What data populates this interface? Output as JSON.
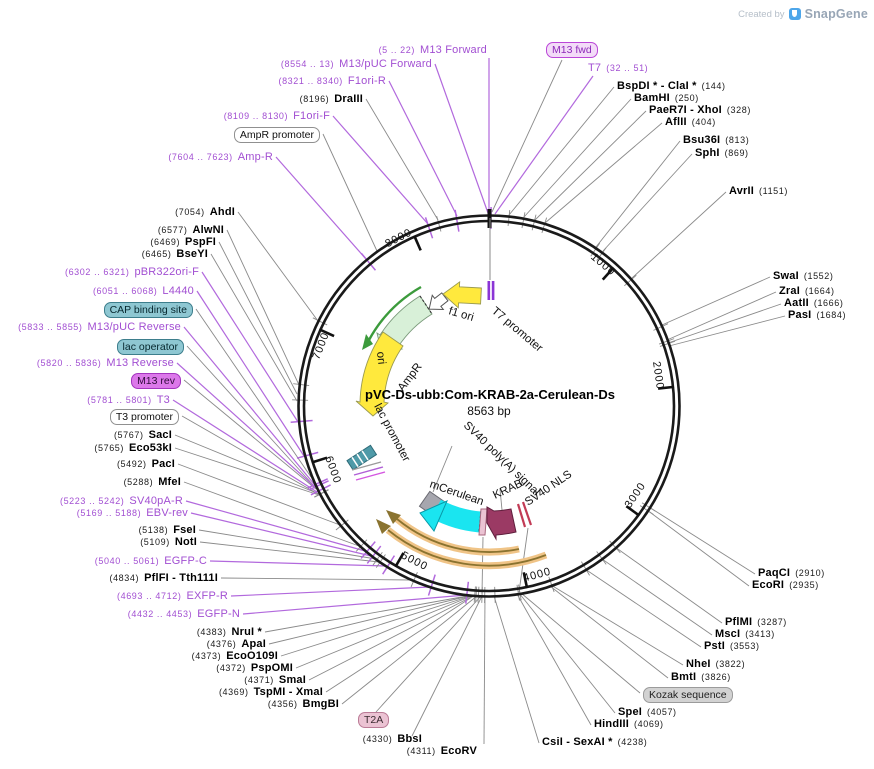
{
  "watermark": {
    "created_by": "Created by",
    "brand": "SnapGene"
  },
  "plasmid": {
    "name": "pVC-Ds-ubb:Com-KRAB-2a-Cerulean-Ds",
    "size": "8563 bp"
  },
  "ticks": [
    "1000",
    "2000",
    "3000",
    "4000",
    "5000",
    "6000",
    "7000",
    "8000"
  ],
  "features": {
    "f1_ori": "f1 ori",
    "t7_promoter": "T7 promoter",
    "ampr": "AmpR",
    "ori": "ori",
    "lac_promoter": "lac promoter",
    "sv40_polya": "SV40 poly(A) signal",
    "mcerulean": "mCerulean",
    "krab": "KRAB",
    "sv40_nls": "SV40 NLS"
  },
  "boxes": {
    "m13_fwd": "M13 fwd",
    "ampr_promoter": "AmpR promoter",
    "cap_binding_site": "CAP binding site",
    "lac_operator": "lac operator",
    "m13_rev": "M13 rev",
    "t3_promoter": "T3 promoter",
    "t2a": "T2A",
    "kozak": "Kozak sequence"
  },
  "primers": {
    "m13_forward": {
      "pos": "(5 .. 22)",
      "name": "M13 Forward"
    },
    "t7": {
      "pos": "(32 .. 51)",
      "name": "T7"
    },
    "m13_puc_forward": {
      "pos": "(8554 .. 13)",
      "name": "M13/pUC Forward"
    },
    "f1ori_r": {
      "pos": "(8321 .. 8340)",
      "name": "F1ori-R"
    },
    "f1ori_f": {
      "pos": "(8109 .. 8130)",
      "name": "F1ori-F"
    },
    "amp_r": {
      "pos": "(7604 .. 7623)",
      "name": "Amp-R"
    },
    "pbr322ori_f": {
      "pos": "(6302 .. 6321)",
      "name": "pBR322ori-F"
    },
    "l4440": {
      "pos": "(6051 .. 6068)",
      "name": "L4440"
    },
    "m13_puc_reverse": {
      "pos": "(5833 .. 5855)",
      "name": "M13/pUC Reverse"
    },
    "m13_reverse": {
      "pos": "(5820 .. 5836)",
      "name": "M13 Reverse"
    },
    "t3": {
      "pos": "(5781 .. 5801)",
      "name": "T3"
    },
    "sv40pa_r": {
      "pos": "(5223 .. 5242)",
      "name": "SV40pA-R"
    },
    "ebv_rev": {
      "pos": "(5169 .. 5188)",
      "name": "EBV-rev"
    },
    "egfp_c": {
      "pos": "(5040 .. 5061)",
      "name": "EGFP-C"
    },
    "exfp_r": {
      "pos": "(4693 .. 4712)",
      "name": "EXFP-R"
    },
    "egfp_n": {
      "pos": "(4432 .. 4453)",
      "name": "EGFP-N"
    }
  },
  "enzymes": {
    "bspdi": {
      "name": "BspDI * - ClaI *",
      "pos": "(144)"
    },
    "bamhi": {
      "name": "BamHI",
      "pos": "(250)"
    },
    "paer7i": {
      "name": "PaeR7I - XhoI",
      "pos": "(328)"
    },
    "aflii": {
      "name": "AflII",
      "pos": "(404)"
    },
    "bsu36i": {
      "name": "Bsu36I",
      "pos": "(813)"
    },
    "sphi": {
      "name": "SphI",
      "pos": "(869)"
    },
    "avrii": {
      "name": "AvrII",
      "pos": "(1151)"
    },
    "swai": {
      "name": "SwaI",
      "pos": "(1552)"
    },
    "zrai": {
      "name": "ZraI",
      "pos": "(1664)"
    },
    "aatii": {
      "name": "AatII",
      "pos": "(1666)"
    },
    "pasi": {
      "name": "PasI",
      "pos": "(1684)"
    },
    "paqci": {
      "name": "PaqCI",
      "pos": "(2910)"
    },
    "ecori": {
      "name": "EcoRI",
      "pos": "(2935)"
    },
    "pflmi": {
      "name": "PflMI",
      "pos": "(3287)"
    },
    "msci": {
      "name": "MscI",
      "pos": "(3413)"
    },
    "psti": {
      "name": "PstI",
      "pos": "(3553)"
    },
    "nhei": {
      "name": "NheI",
      "pos": "(3822)"
    },
    "bmti": {
      "name": "BmtI",
      "pos": "(3826)"
    },
    "spei": {
      "name": "SpeI",
      "pos": "(4057)"
    },
    "hindiii": {
      "name": "HindIII",
      "pos": "(4069)"
    },
    "csii": {
      "name": "CsiI - SexAI *",
      "pos": "(4238)"
    },
    "ecorv": {
      "name": "EcoRV",
      "pos": "(4311)"
    },
    "bbsi": {
      "name": "BbsI",
      "pos": "(4330)"
    },
    "bmgbi": {
      "name": "BmgBI",
      "pos": "(4356)"
    },
    "tspmi": {
      "name": "TspMI - XmaI",
      "pos": "(4369)"
    },
    "smai": {
      "name": "SmaI",
      "pos": "(4371)"
    },
    "pspomi": {
      "name": "PspOMI",
      "pos": "(4372)"
    },
    "ecoo109i": {
      "name": "EcoO109I",
      "pos": "(4373)"
    },
    "apai": {
      "name": "ApaI",
      "pos": "(4376)"
    },
    "nrui": {
      "name": "NruI *",
      "pos": "(4383)"
    },
    "pflfi": {
      "name": "PflFI - Tth111I",
      "pos": "(4834)"
    },
    "noti": {
      "name": "NotI",
      "pos": "(5109)"
    },
    "fsei": {
      "name": "FseI",
      "pos": "(5138)"
    },
    "mfei": {
      "name": "MfeI",
      "pos": "(5288)"
    },
    "paci": {
      "name": "PacI",
      "pos": "(5492)"
    },
    "eco53ki": {
      "name": "Eco53kI",
      "pos": "(5765)"
    },
    "saci": {
      "name": "SacI",
      "pos": "(5767)"
    },
    "bseyi": {
      "name": "BseYI",
      "pos": "(6465)"
    },
    "pspfi": {
      "name": "PspFI",
      "pos": "(6469)"
    },
    "alwni": {
      "name": "AlwNI",
      "pos": "(6577)"
    },
    "ahdi": {
      "name": "AhdI",
      "pos": "(7054)"
    },
    "draiii": {
      "name": "DraIII",
      "pos": "(8196)"
    }
  },
  "colors": {
    "primer_purple": "#a24fd2",
    "connector_gray": "#8a8a8a",
    "ring_black": "#1a1a1a",
    "ampr_green_fill": "#d8f0d8",
    "ampr_green_arrow": "#3c9b3c",
    "ori_yellow": "#ffe93d",
    "mcerulean_cyan": "#1ae5f0",
    "krab_maroon": "#9b3a64",
    "nls_red": "#c23b55",
    "polya_gray": "#a6a6ae",
    "orange_arc": "#f0c487",
    "teal_box": "#8ec7d2",
    "m13fwd_box": "#f3dbf8",
    "m13rev_box": "#dc78ea",
    "t2a_box": "#ebc3d3",
    "kozak_box": "#d2d2d2",
    "snapgene_blue": "#4da6ea"
  }
}
